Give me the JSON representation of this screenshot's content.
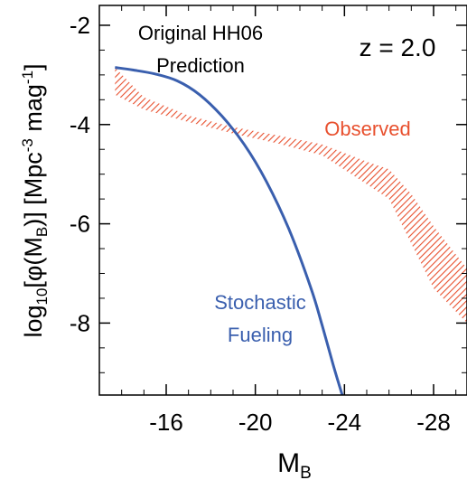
{
  "chart_data": {
    "type": "line",
    "xlim": [
      -13,
      -29.5
    ],
    "ylim": [
      -9.45,
      -1.6
    ],
    "x_ticks": [
      -16,
      -20,
      -24,
      -28
    ],
    "y_ticks": [
      -2,
      -4,
      -6,
      -8
    ],
    "x_tick_labels": [
      "-16",
      "-20",
      "-24",
      "-28"
    ],
    "y_tick_labels": [
      "-2",
      "-4",
      "-6",
      "-8"
    ],
    "xlabel": {
      "main": "M",
      "sub": "B"
    },
    "ylabel": {
      "p1": "log",
      "p1_sub": "10",
      "p2": "[φ(M",
      "p2_sub": "B",
      "p3": ")]  [Mpc",
      "p3_sup": "-3",
      "p4": " mag",
      "p4_sup": "-1",
      "p5": "]"
    },
    "annotations": {
      "prediction": [
        "Original HH06",
        "Prediction"
      ],
      "observed": "Observed",
      "stochastic": [
        "Stochastic",
        "Fueling"
      ],
      "redshift": "z = 2.0"
    },
    "colors": {
      "prediction": "#000000",
      "stochastic": "#3a5fae",
      "observed": "#e8502e"
    },
    "series": [
      {
        "role": "stochastic",
        "x": [
          -13.7,
          -14.5,
          -15.5,
          -16.5,
          -17.5,
          -18.5,
          -19.5,
          -20.5,
          -21.5,
          -22.5,
          -23.0,
          -23.5,
          -23.9
        ],
        "y": [
          -2.85,
          -2.9,
          -2.98,
          -3.12,
          -3.4,
          -3.83,
          -4.4,
          -5.15,
          -6.1,
          -7.3,
          -8.05,
          -8.85,
          -9.45
        ]
      }
    ],
    "bands": [
      {
        "role": "observed",
        "x": [
          -13.7,
          -15.0,
          -17.0,
          -19.0,
          -21.0,
          -23.0,
          -25.0,
          -26.0,
          -27.0,
          -28.0,
          -29.5
        ],
        "upper": [
          -2.85,
          -3.45,
          -3.82,
          -4.05,
          -4.22,
          -4.4,
          -4.75,
          -4.9,
          -5.4,
          -6.05,
          -6.9
        ],
        "lower": [
          -3.4,
          -3.7,
          -3.95,
          -4.18,
          -4.38,
          -4.62,
          -5.2,
          -5.5,
          -6.4,
          -7.3,
          -8.0
        ]
      }
    ]
  }
}
